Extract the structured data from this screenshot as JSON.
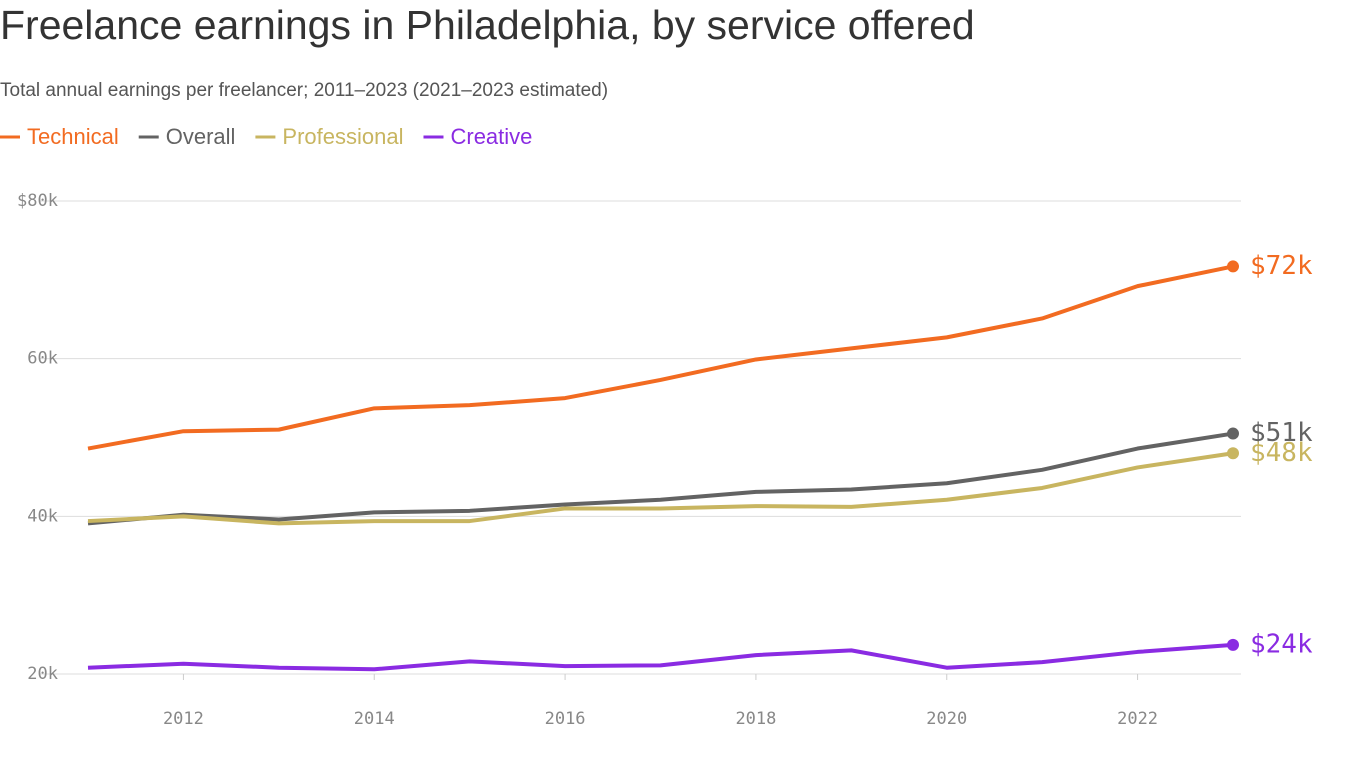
{
  "chart_data": {
    "type": "line",
    "title": "Freelance earnings in Philadelphia, by service offered",
    "subtitle": "Total annual earnings per freelancer; 2011–2023 (2021–2023 estimated)",
    "x": [
      2011,
      2012,
      2013,
      2014,
      2015,
      2016,
      2017,
      2018,
      2019,
      2020,
      2021,
      2022,
      2023
    ],
    "xlim": [
      2011,
      2023
    ],
    "xticks": [
      2012,
      2014,
      2016,
      2018,
      2020,
      2022
    ],
    "ylim": [
      20,
      80
    ],
    "yticks": [
      {
        "value": 20,
        "label": "20k"
      },
      {
        "value": 40,
        "label": "40k"
      },
      {
        "value": 60,
        "label": "60k"
      },
      {
        "value": 80,
        "label": "$80k"
      }
    ],
    "grid": true,
    "series": [
      {
        "name": "Technical",
        "color": "#f26b21",
        "values": [
          48.6,
          50.8,
          51.0,
          53.7,
          54.1,
          55.0,
          57.3,
          59.9,
          61.3,
          62.7,
          65.1,
          69.2,
          71.7
        ],
        "value_labels": [
          null,
          null,
          null,
          null,
          null,
          null,
          null,
          null,
          null,
          null,
          null,
          null,
          "$72k"
        ]
      },
      {
        "name": "Overall",
        "color": "#636363",
        "values": [
          39.1,
          40.2,
          39.6,
          40.5,
          40.7,
          41.5,
          42.1,
          43.1,
          43.4,
          44.2,
          45.9,
          48.6,
          50.5
        ],
        "value_labels": [
          null,
          null,
          null,
          null,
          null,
          null,
          null,
          null,
          null,
          null,
          null,
          null,
          "$51k"
        ]
      },
      {
        "name": "Professional",
        "color": "#c8b560",
        "values": [
          39.4,
          40.0,
          39.1,
          39.4,
          39.4,
          41.0,
          41.0,
          41.3,
          41.2,
          42.1,
          43.6,
          46.2,
          48.0
        ],
        "value_labels": [
          null,
          null,
          null,
          null,
          null,
          null,
          null,
          null,
          null,
          null,
          null,
          null,
          "$48k"
        ]
      },
      {
        "name": "Creative",
        "color": "#8a2be2",
        "values": [
          20.8,
          21.3,
          20.8,
          20.6,
          21.6,
          21.0,
          21.1,
          22.4,
          23.0,
          20.8,
          21.5,
          22.8,
          23.7
        ],
        "value_labels": [
          null,
          null,
          null,
          null,
          null,
          null,
          null,
          null,
          null,
          null,
          null,
          null,
          "$24k"
        ]
      }
    ]
  }
}
